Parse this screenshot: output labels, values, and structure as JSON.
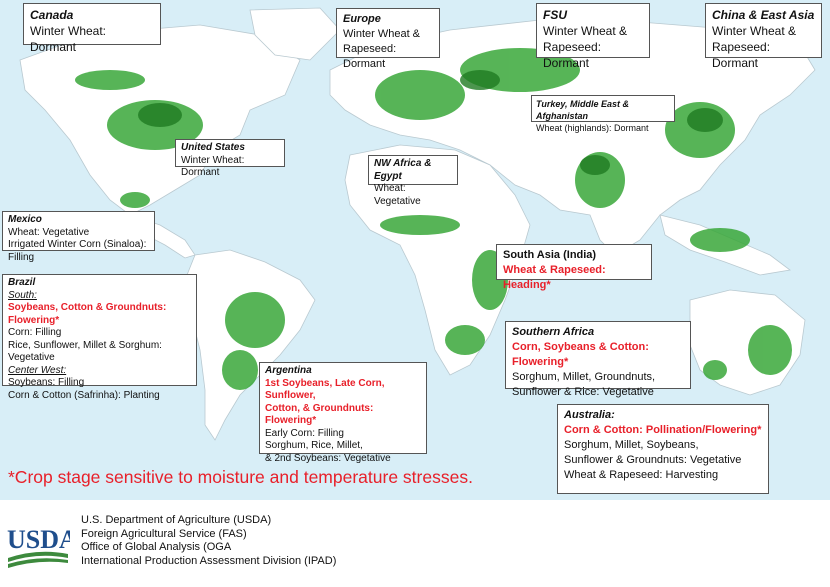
{
  "map": {
    "title": "",
    "ocean_color": "#d8eef7",
    "land_color": "#ffffff",
    "crop_color": "#3aa83a",
    "dense_crop_color": "#1f7a22"
  },
  "regions": {
    "canada": {
      "name": "Canada",
      "lines": [
        "Winter Wheat: Dormant"
      ]
    },
    "europe": {
      "name": "Europe",
      "lines": [
        "Winter Wheat &",
        "Rapeseed: Dormant"
      ]
    },
    "fsu": {
      "name": "FSU",
      "lines": [
        "Winter Wheat &",
        "Rapeseed: Dormant"
      ]
    },
    "china": {
      "name": "China & East Asia",
      "lines": [
        "Winter Wheat &",
        "Rapeseed: Dormant"
      ]
    },
    "turkey": {
      "name": "Turkey, Middle East & Afghanistan",
      "lines": [
        "Wheat (highlands): Dormant"
      ]
    },
    "us": {
      "name": "United States",
      "lines": [
        "Winter Wheat: Dormant"
      ]
    },
    "nwafrica": {
      "name": "NW Africa & Egypt",
      "lines": [
        "Wheat: Vegetative"
      ]
    },
    "mexico": {
      "name": "Mexico",
      "lines": [
        "Wheat: Vegetative",
        "Irrigated Winter Corn (Sinaloa): Filling"
      ]
    },
    "southasia": {
      "name": "South Asia (India)",
      "red": "Wheat & Rapeseed:  Heading*"
    },
    "brazil": {
      "name": "Brazil",
      "south_label": "South:",
      "south_red": "Soybeans, Cotton & Groundnuts: Flowering*",
      "south_lines": [
        "Corn: Filling",
        "Rice, Sunflower, Millet & Sorghum: Vegetative"
      ],
      "cw_label": "Center West:",
      "cw_lines": [
        "Soybeans: Filling",
        "Corn & Cotton (Safrinha): Planting"
      ]
    },
    "safrica": {
      "name": "Southern Africa",
      "red": "Corn, Soybeans & Cotton:  Flowering*",
      "lines": [
        "Sorghum, Millet, Groundnuts,",
        "Sunflower & Rice: Vegetative"
      ]
    },
    "argentina": {
      "name": "Argentina",
      "red": [
        "1st Soybeans, Late Corn, Sunflower,",
        "Cotton, & Groundnuts: Flowering*"
      ],
      "lines": [
        "Early Corn: Filling",
        "Sorghum, Rice, Millet,",
        "& 2nd Soybeans: Vegetative"
      ]
    },
    "australia": {
      "name": "Australia:",
      "red": "Corn & Cotton: Pollination/Flowering*",
      "lines": [
        "Sorghum, Millet, Soybeans,",
        "Sunflower & Groundnuts: Vegetative",
        "Wheat & Rapeseed: Harvesting"
      ]
    }
  },
  "footnote": "*Crop stage sensitive to moisture and temperature stresses.",
  "logo": {
    "text": "USDA",
    "color": "#1f4e8c",
    "accent": "#3d8a3d"
  },
  "agency": [
    "U.S. Department of Agriculture (USDA)",
    "Foreign Agricultural Service (FAS)",
    "Office of Global Analysis (OGA",
    "International Production Assessment Division (IPAD)"
  ]
}
